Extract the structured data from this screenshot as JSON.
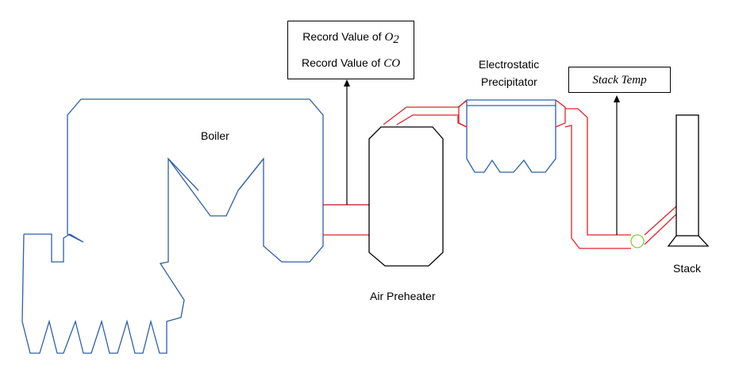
{
  "labels": {
    "boiler": "Boiler",
    "air_preheater": "Air Preheater",
    "esp_line1": "Electrostatic",
    "esp_line2": "Precipitator",
    "stack": "Stack"
  },
  "record_box": {
    "line1_prefix": "Record Value of ",
    "line1_var": "O",
    "line1_sub": "2",
    "line2_prefix": "Record Value of ",
    "line2_var": "CO"
  },
  "stack_temp_box": {
    "text": "Stack Temp"
  },
  "colors": {
    "boiler_outline": "#2E5FA8",
    "flue_duct": "#E0242B",
    "equipment_outline": "#000000",
    "sensor_circle": "#8CC63F"
  }
}
